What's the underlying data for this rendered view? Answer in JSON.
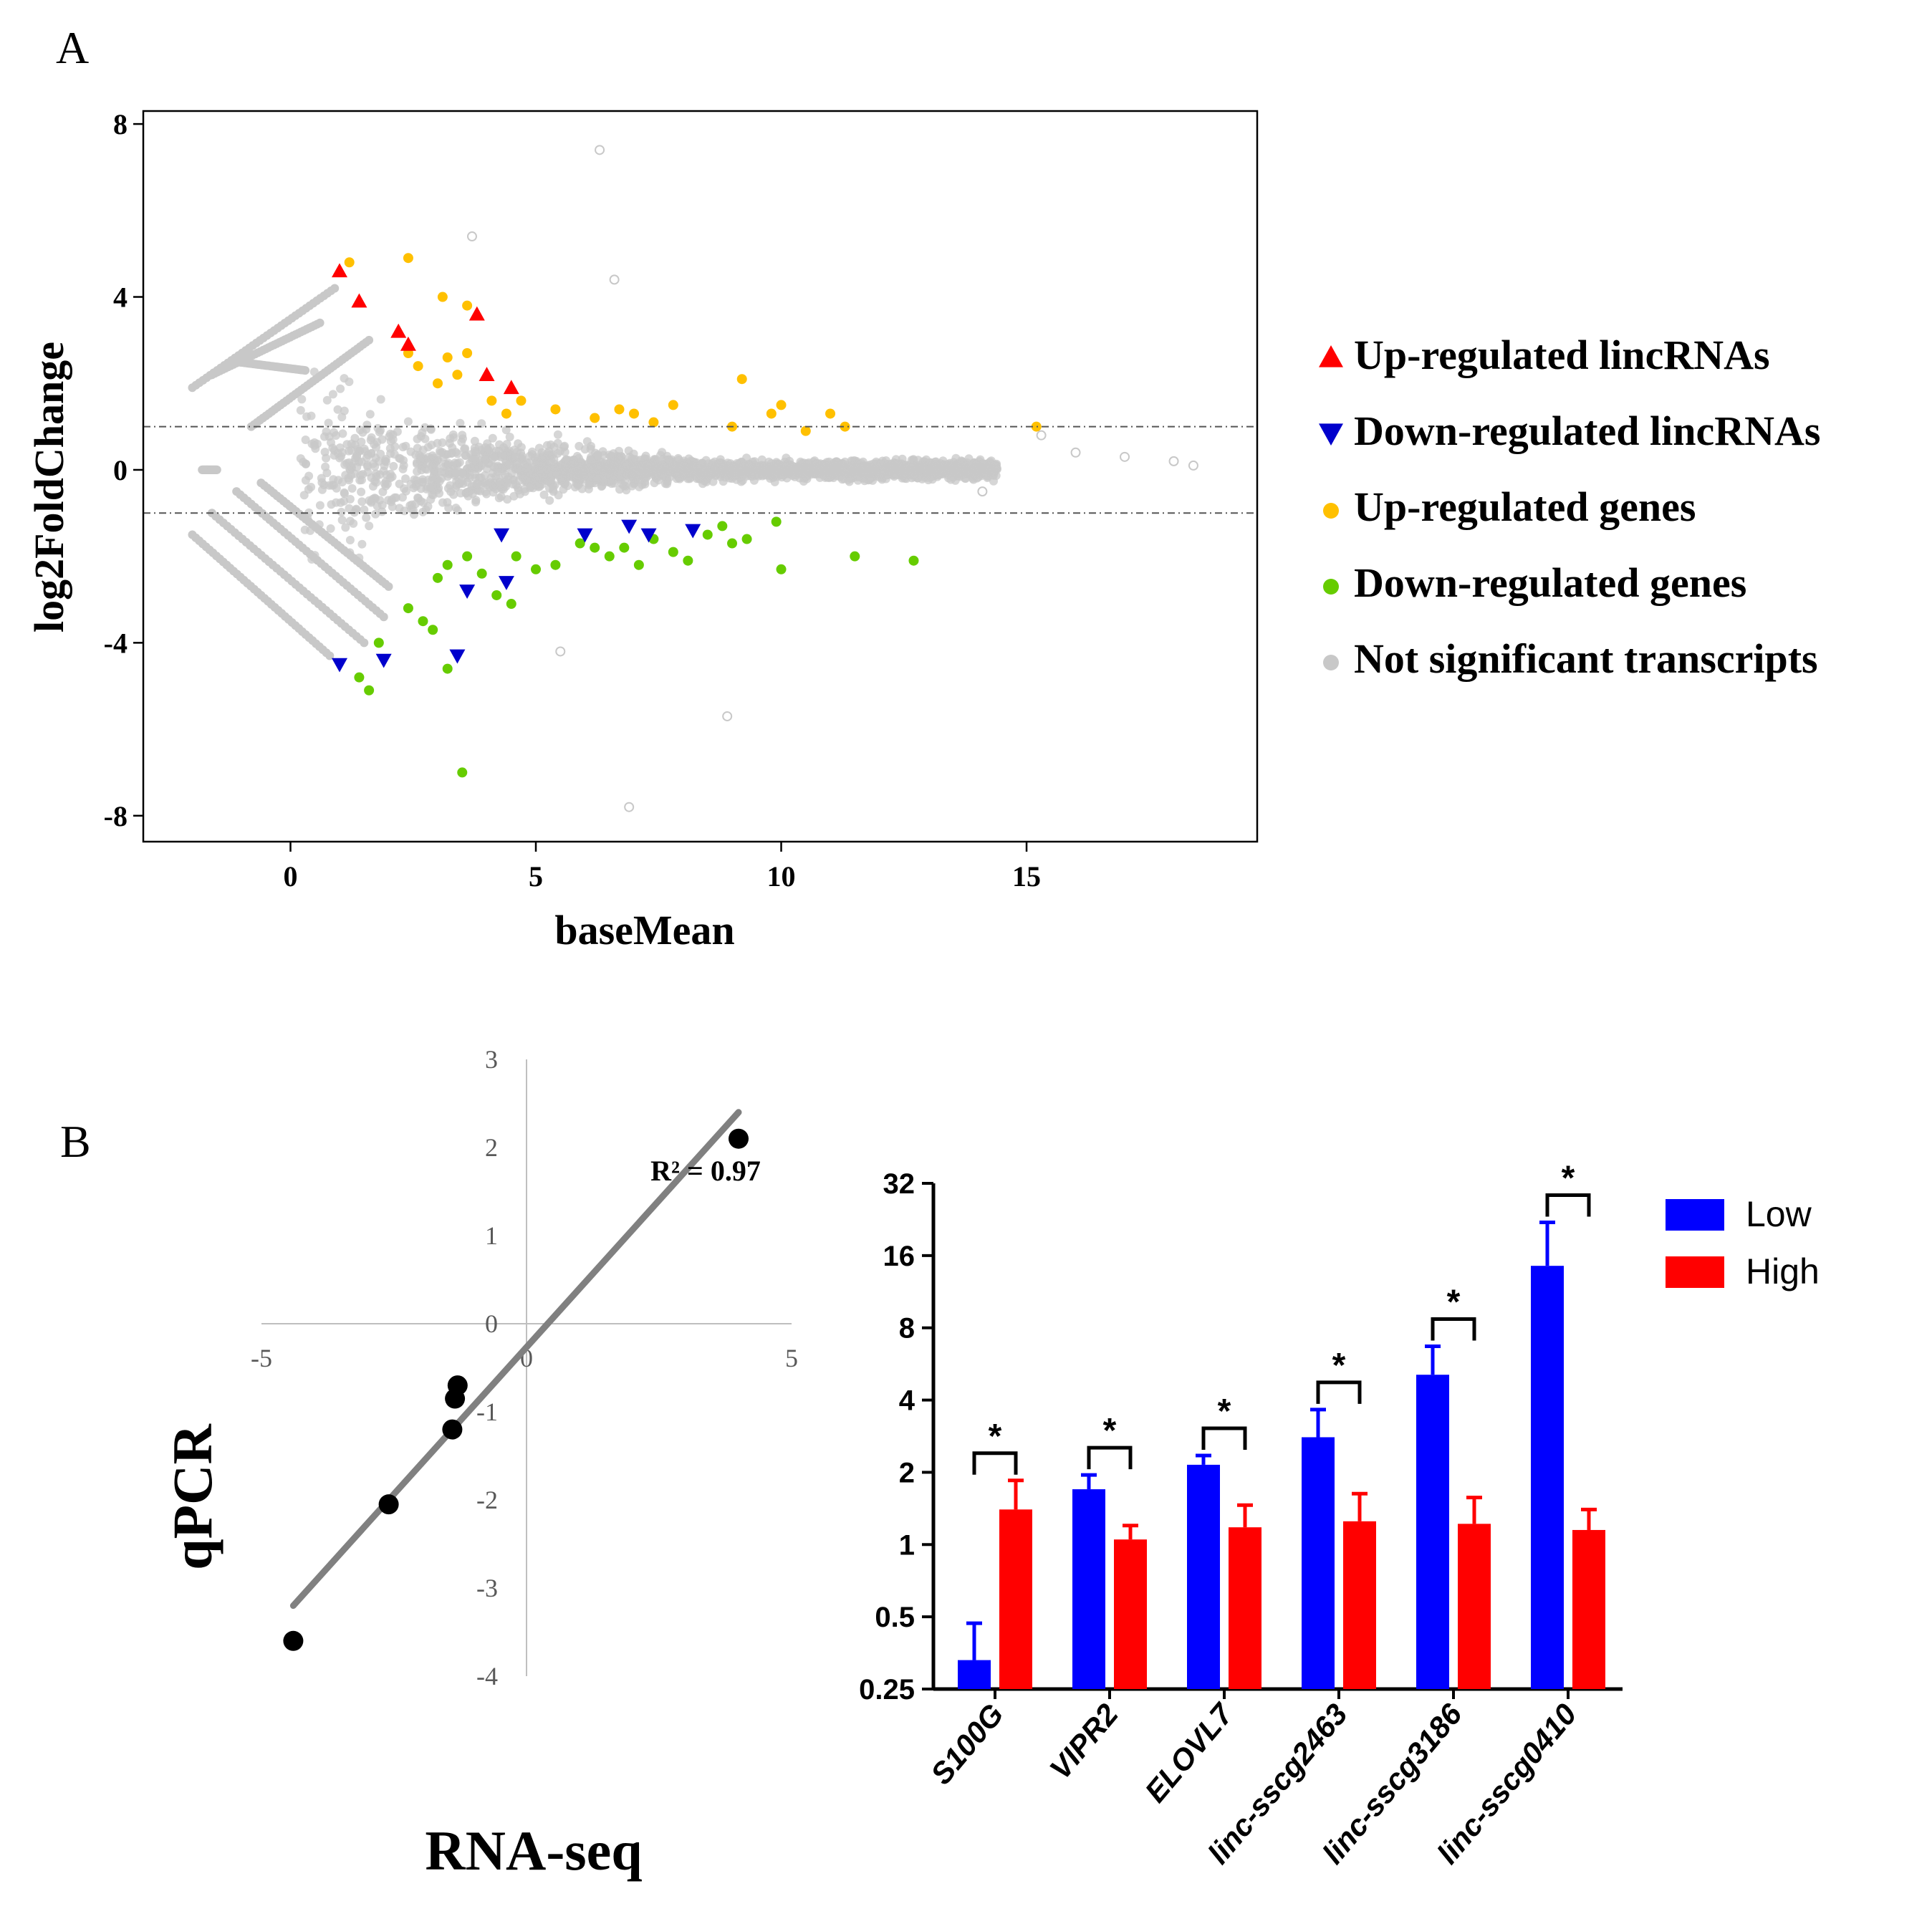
{
  "panel_labels": {
    "a": "A",
    "b": "B"
  },
  "colors": {
    "up_lincrna": "#ff0000",
    "down_lincrna": "#0000cc",
    "up_gene": "#ffc000",
    "down_gene": "#66cc00",
    "not_significant": "#c8c8c8",
    "bar_low": "#0000ff",
    "bar_high": "#ff0000",
    "regression_line": "#808080",
    "scatter_point": "#000000"
  },
  "chart_data": [
    {
      "id": "ma_plot",
      "type": "scatter",
      "xlabel": "baseMean",
      "ylabel": "log2FoldChange",
      "xlim": [
        -3,
        19.7
      ],
      "ylim": [
        -8.6,
        8.3
      ],
      "xticks": [
        0,
        5,
        10,
        15
      ],
      "yticks": [
        8,
        4,
        0,
        -4,
        -8
      ],
      "threshold_lines": [
        1,
        -1
      ],
      "legend": [
        {
          "label": "Up-regulated lincRNAs",
          "marker": "triangle-up",
          "color_key": "up_lincrna"
        },
        {
          "label": "Down-regulated lincRNAs",
          "marker": "triangle-down",
          "color_key": "down_lincrna"
        },
        {
          "label": "Up-regulated genes",
          "marker": "circle",
          "color_key": "up_gene"
        },
        {
          "label": "Down-regulated genes",
          "marker": "circle",
          "color_key": "down_gene"
        },
        {
          "label": "Not significant transcripts",
          "marker": "circle",
          "color_key": "not_significant"
        }
      ],
      "series": [
        {
          "name": "Up-regulated lincRNAs",
          "points": [
            [
              1.0,
              4.6
            ],
            [
              1.4,
              3.9
            ],
            [
              2.2,
              3.2
            ],
            [
              2.4,
              2.9
            ],
            [
              3.8,
              3.6
            ],
            [
              4.0,
              2.2
            ],
            [
              4.5,
              1.9
            ]
          ]
        },
        {
          "name": "Down-regulated lincRNAs",
          "points": [
            [
              1.0,
              -4.5
            ],
            [
              1.9,
              -4.4
            ],
            [
              3.4,
              -4.3
            ],
            [
              3.6,
              -2.8
            ],
            [
              4.4,
              -2.6
            ],
            [
              4.3,
              -1.5
            ],
            [
              6.0,
              -1.5
            ],
            [
              6.9,
              -1.3
            ],
            [
              7.3,
              -1.5
            ],
            [
              8.2,
              -1.4
            ]
          ]
        },
        {
          "name": "Up-regulated genes",
          "points": [
            [
              1.2,
              4.8
            ],
            [
              2.4,
              2.7
            ],
            [
              2.6,
              2.4
            ],
            [
              3.0,
              2.0
            ],
            [
              3.4,
              2.2
            ],
            [
              3.2,
              2.6
            ],
            [
              3.6,
              2.7
            ],
            [
              3.1,
              4.0
            ],
            [
              2.4,
              4.9
            ],
            [
              3.6,
              3.8
            ],
            [
              4.1,
              1.6
            ],
            [
              4.4,
              1.3
            ],
            [
              4.7,
              1.6
            ],
            [
              5.4,
              1.4
            ],
            [
              6.2,
              1.2
            ],
            [
              6.7,
              1.4
            ],
            [
              7.0,
              1.3
            ],
            [
              7.4,
              1.1
            ],
            [
              7.8,
              1.5
            ],
            [
              9.0,
              1.0
            ],
            [
              9.2,
              2.1
            ],
            [
              9.8,
              1.3
            ],
            [
              10.0,
              1.5
            ],
            [
              10.5,
              0.9
            ],
            [
              11.0,
              1.3
            ],
            [
              11.3,
              1.0
            ],
            [
              15.2,
              1.0
            ]
          ]
        },
        {
          "name": "Down-regulated genes",
          "points": [
            [
              1.4,
              -4.8
            ],
            [
              1.6,
              -5.1
            ],
            [
              1.8,
              -4.0
            ],
            [
              2.4,
              -3.2
            ],
            [
              2.7,
              -3.5
            ],
            [
              2.9,
              -3.7
            ],
            [
              3.0,
              -2.5
            ],
            [
              3.2,
              -4.6
            ],
            [
              3.2,
              -2.2
            ],
            [
              3.5,
              -7.0
            ],
            [
              3.6,
              -2.0
            ],
            [
              3.9,
              -2.4
            ],
            [
              4.2,
              -2.9
            ],
            [
              4.5,
              -3.1
            ],
            [
              4.6,
              -2.0
            ],
            [
              5.0,
              -2.3
            ],
            [
              5.4,
              -2.2
            ],
            [
              5.9,
              -1.7
            ],
            [
              6.2,
              -1.8
            ],
            [
              6.5,
              -2.0
            ],
            [
              6.8,
              -1.8
            ],
            [
              7.1,
              -2.2
            ],
            [
              7.4,
              -1.6
            ],
            [
              7.8,
              -1.9
            ],
            [
              8.1,
              -2.1
            ],
            [
              8.5,
              -1.5
            ],
            [
              8.8,
              -1.3
            ],
            [
              9.0,
              -1.7
            ],
            [
              9.3,
              -1.6
            ],
            [
              9.9,
              -1.2
            ],
            [
              10.0,
              -2.3
            ],
            [
              11.5,
              -2.0
            ],
            [
              12.7,
              -2.1
            ]
          ]
        }
      ],
      "not_significant": {
        "description_only_for_rendering": false,
        "outliers": [
          [
            6.3,
            7.4
          ],
          [
            6.6,
            4.4
          ],
          [
            8.9,
            -5.7
          ],
          [
            6.9,
            -7.8
          ],
          [
            3.7,
            5.4
          ],
          [
            5.5,
            -4.2
          ],
          [
            14.1,
            -0.5
          ],
          [
            15.3,
            0.8
          ],
          [
            16.0,
            0.4
          ],
          [
            17.0,
            0.3
          ],
          [
            18.0,
            0.2
          ],
          [
            18.4,
            0.1
          ]
        ]
      }
    },
    {
      "id": "correlation",
      "type": "scatter",
      "xlabel": "RNA-seq",
      "ylabel": "qPCR",
      "annotation": "R² = 0.97",
      "xlim": [
        -5,
        5
      ],
      "ylim": [
        -4,
        3
      ],
      "xticks": [
        -5,
        0,
        5
      ],
      "yticks": [
        3,
        2,
        1,
        0,
        -1,
        -2,
        -3,
        -4
      ],
      "points": [
        [
          4.0,
          2.1
        ],
        [
          -1.3,
          -0.7
        ],
        [
          -1.35,
          -0.85
        ],
        [
          -1.4,
          -1.2
        ],
        [
          -2.6,
          -2.05
        ],
        [
          -4.4,
          -3.6
        ]
      ],
      "trendline": [
        [
          -4.4,
          -3.2
        ],
        [
          4.0,
          2.4
        ]
      ]
    },
    {
      "id": "bar_chart",
      "type": "bar",
      "scale": "log2",
      "ylim": [
        0.25,
        32
      ],
      "yticks": [
        "32",
        "16",
        "8",
        "4",
        "2",
        "1",
        "0.5",
        "0.25"
      ],
      "categories": [
        "S100G",
        "VIPR2",
        "ELOVL7",
        "linc-sscg2463",
        "linc-sscg3186",
        "linc-sscg0410"
      ],
      "series": [
        {
          "name": "Low",
          "values": [
            0.33,
            1.7,
            2.15,
            2.8,
            5.1,
            14.5
          ],
          "errors": [
            0.14,
            0.25,
            0.2,
            0.85,
            1.6,
            7.5
          ]
        },
        {
          "name": "High",
          "values": [
            1.4,
            1.05,
            1.18,
            1.25,
            1.22,
            1.15
          ],
          "errors": [
            0.45,
            0.15,
            0.28,
            0.38,
            0.35,
            0.25
          ]
        }
      ],
      "significance": [
        "*",
        "*",
        "*",
        "*",
        "*",
        "*"
      ],
      "legend": [
        "Low",
        "High"
      ]
    }
  ]
}
